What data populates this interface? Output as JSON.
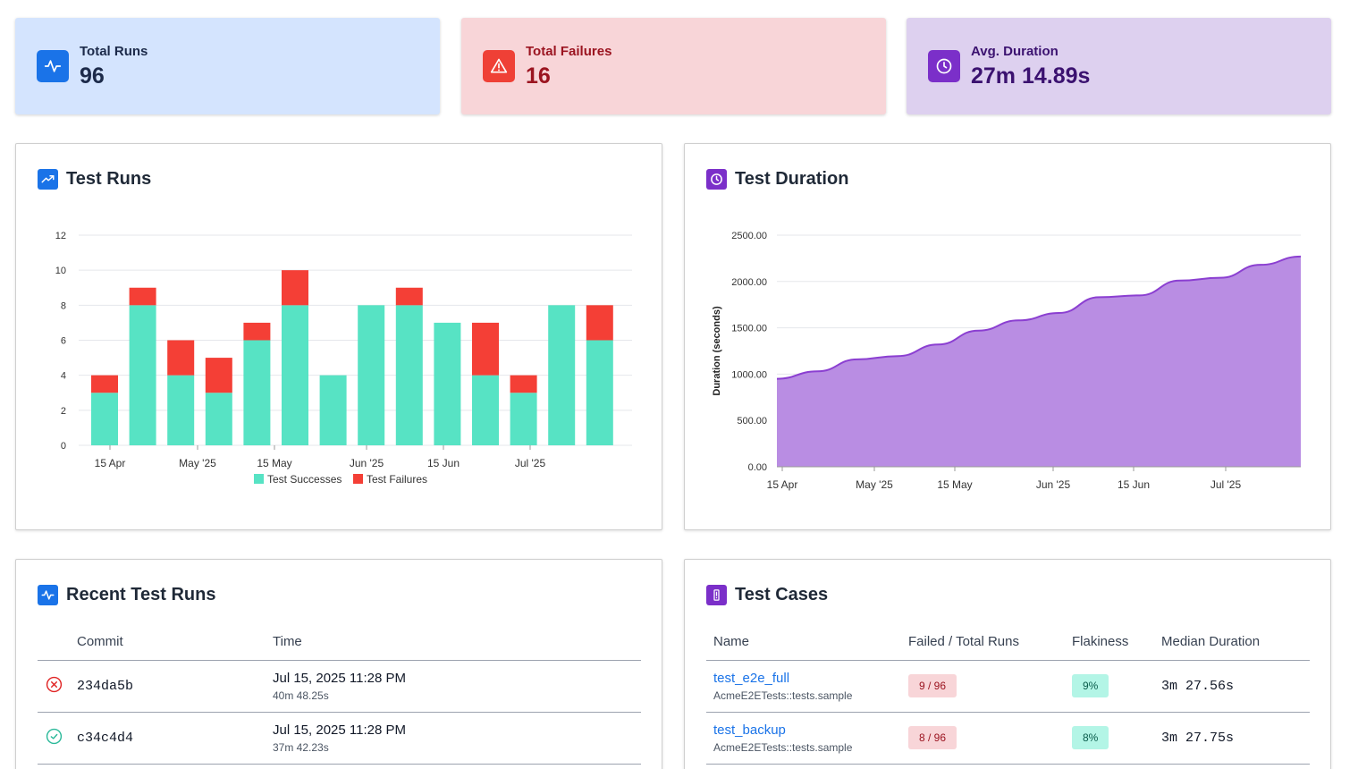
{
  "stats": {
    "total_runs": {
      "label": "Total Runs",
      "value": "96",
      "icon": "activity-icon",
      "color": "#1a73e8"
    },
    "total_failures": {
      "label": "Total Failures",
      "value": "16",
      "icon": "warning-triangle-icon",
      "color": "#ef4036"
    },
    "avg_duration": {
      "label": "Avg. Duration",
      "value": "27m 14.89s",
      "icon": "clock-icon",
      "color": "#7b2fc9"
    }
  },
  "panels": {
    "test_runs": {
      "title": "Test Runs",
      "icon": "trending-up-icon"
    },
    "test_duration": {
      "title": "Test Duration",
      "icon": "clock-icon"
    },
    "recent_runs": {
      "title": "Recent Test Runs",
      "icon": "activity-icon"
    },
    "test_cases": {
      "title": "Test Cases",
      "icon": "exclamation-icon"
    }
  },
  "chart_data": [
    {
      "type": "bar",
      "stacked": true,
      "title": "Test Runs",
      "x_tick_labels": [
        "15 Apr",
        "May '25",
        "15 May",
        "Jun '25",
        "15 Jun",
        "Jul '25"
      ],
      "series": [
        {
          "name": "Test Successes",
          "color": "#57e3c4",
          "values": [
            3,
            8,
            4,
            3,
            6,
            8,
            4,
            8,
            8,
            7,
            4,
            3,
            8,
            6
          ]
        },
        {
          "name": "Test Failures",
          "color": "#f43f36",
          "values": [
            1,
            1,
            2,
            2,
            1,
            2,
            0,
            0,
            1,
            0,
            3,
            1,
            0,
            2
          ]
        }
      ],
      "ylim": [
        0,
        12
      ],
      "y_ticks": [
        "0",
        "2",
        "4",
        "6",
        "8",
        "10",
        "12"
      ],
      "legend": "bottom"
    },
    {
      "type": "area",
      "title": "Test Duration",
      "ylabel": "Duration (seconds)",
      "x_tick_labels": [
        "15 Apr",
        "May '25",
        "15 May",
        "Jun '25",
        "15 Jun",
        "Jul '25"
      ],
      "series": [
        {
          "name": "Duration",
          "color": "#8b3fd1",
          "fill": "#b98de3",
          "values": [
            950,
            1030,
            1160,
            1195,
            1320,
            1470,
            1580,
            1660,
            1830,
            1850,
            2010,
            2040,
            2180,
            2270
          ]
        }
      ],
      "ylim": [
        0,
        2500
      ],
      "y_ticks": [
        "0.00",
        "500.00",
        "1000.00",
        "1500.00",
        "2000.00",
        "2500.00"
      ]
    }
  ],
  "recent_runs": {
    "headers": {
      "commit": "Commit",
      "time": "Time"
    },
    "rows": [
      {
        "status": "failed",
        "status_icon": "x-circle-icon",
        "commit": "234da5b",
        "time": "Jul 15, 2025 11:28 PM",
        "duration": "40m 48.25s"
      },
      {
        "status": "passed",
        "status_icon": "check-circle-icon",
        "commit": "c34c4d4",
        "time": "Jul 15, 2025 11:28 PM",
        "duration": "37m 42.23s"
      }
    ]
  },
  "test_cases": {
    "headers": {
      "name": "Name",
      "failed_total": "Failed / Total Runs",
      "flakiness": "Flakiness",
      "median": "Median Duration"
    },
    "rows": [
      {
        "name": "test_e2e_full",
        "suite": "AcmeE2ETests::tests.sample",
        "failed_total": "9 / 96",
        "flakiness": "9%",
        "median": "3m 27.56s"
      },
      {
        "name": "test_backup",
        "suite": "AcmeE2ETests::tests.sample",
        "failed_total": "8 / 96",
        "flakiness": "8%",
        "median": "3m 27.75s"
      }
    ]
  }
}
